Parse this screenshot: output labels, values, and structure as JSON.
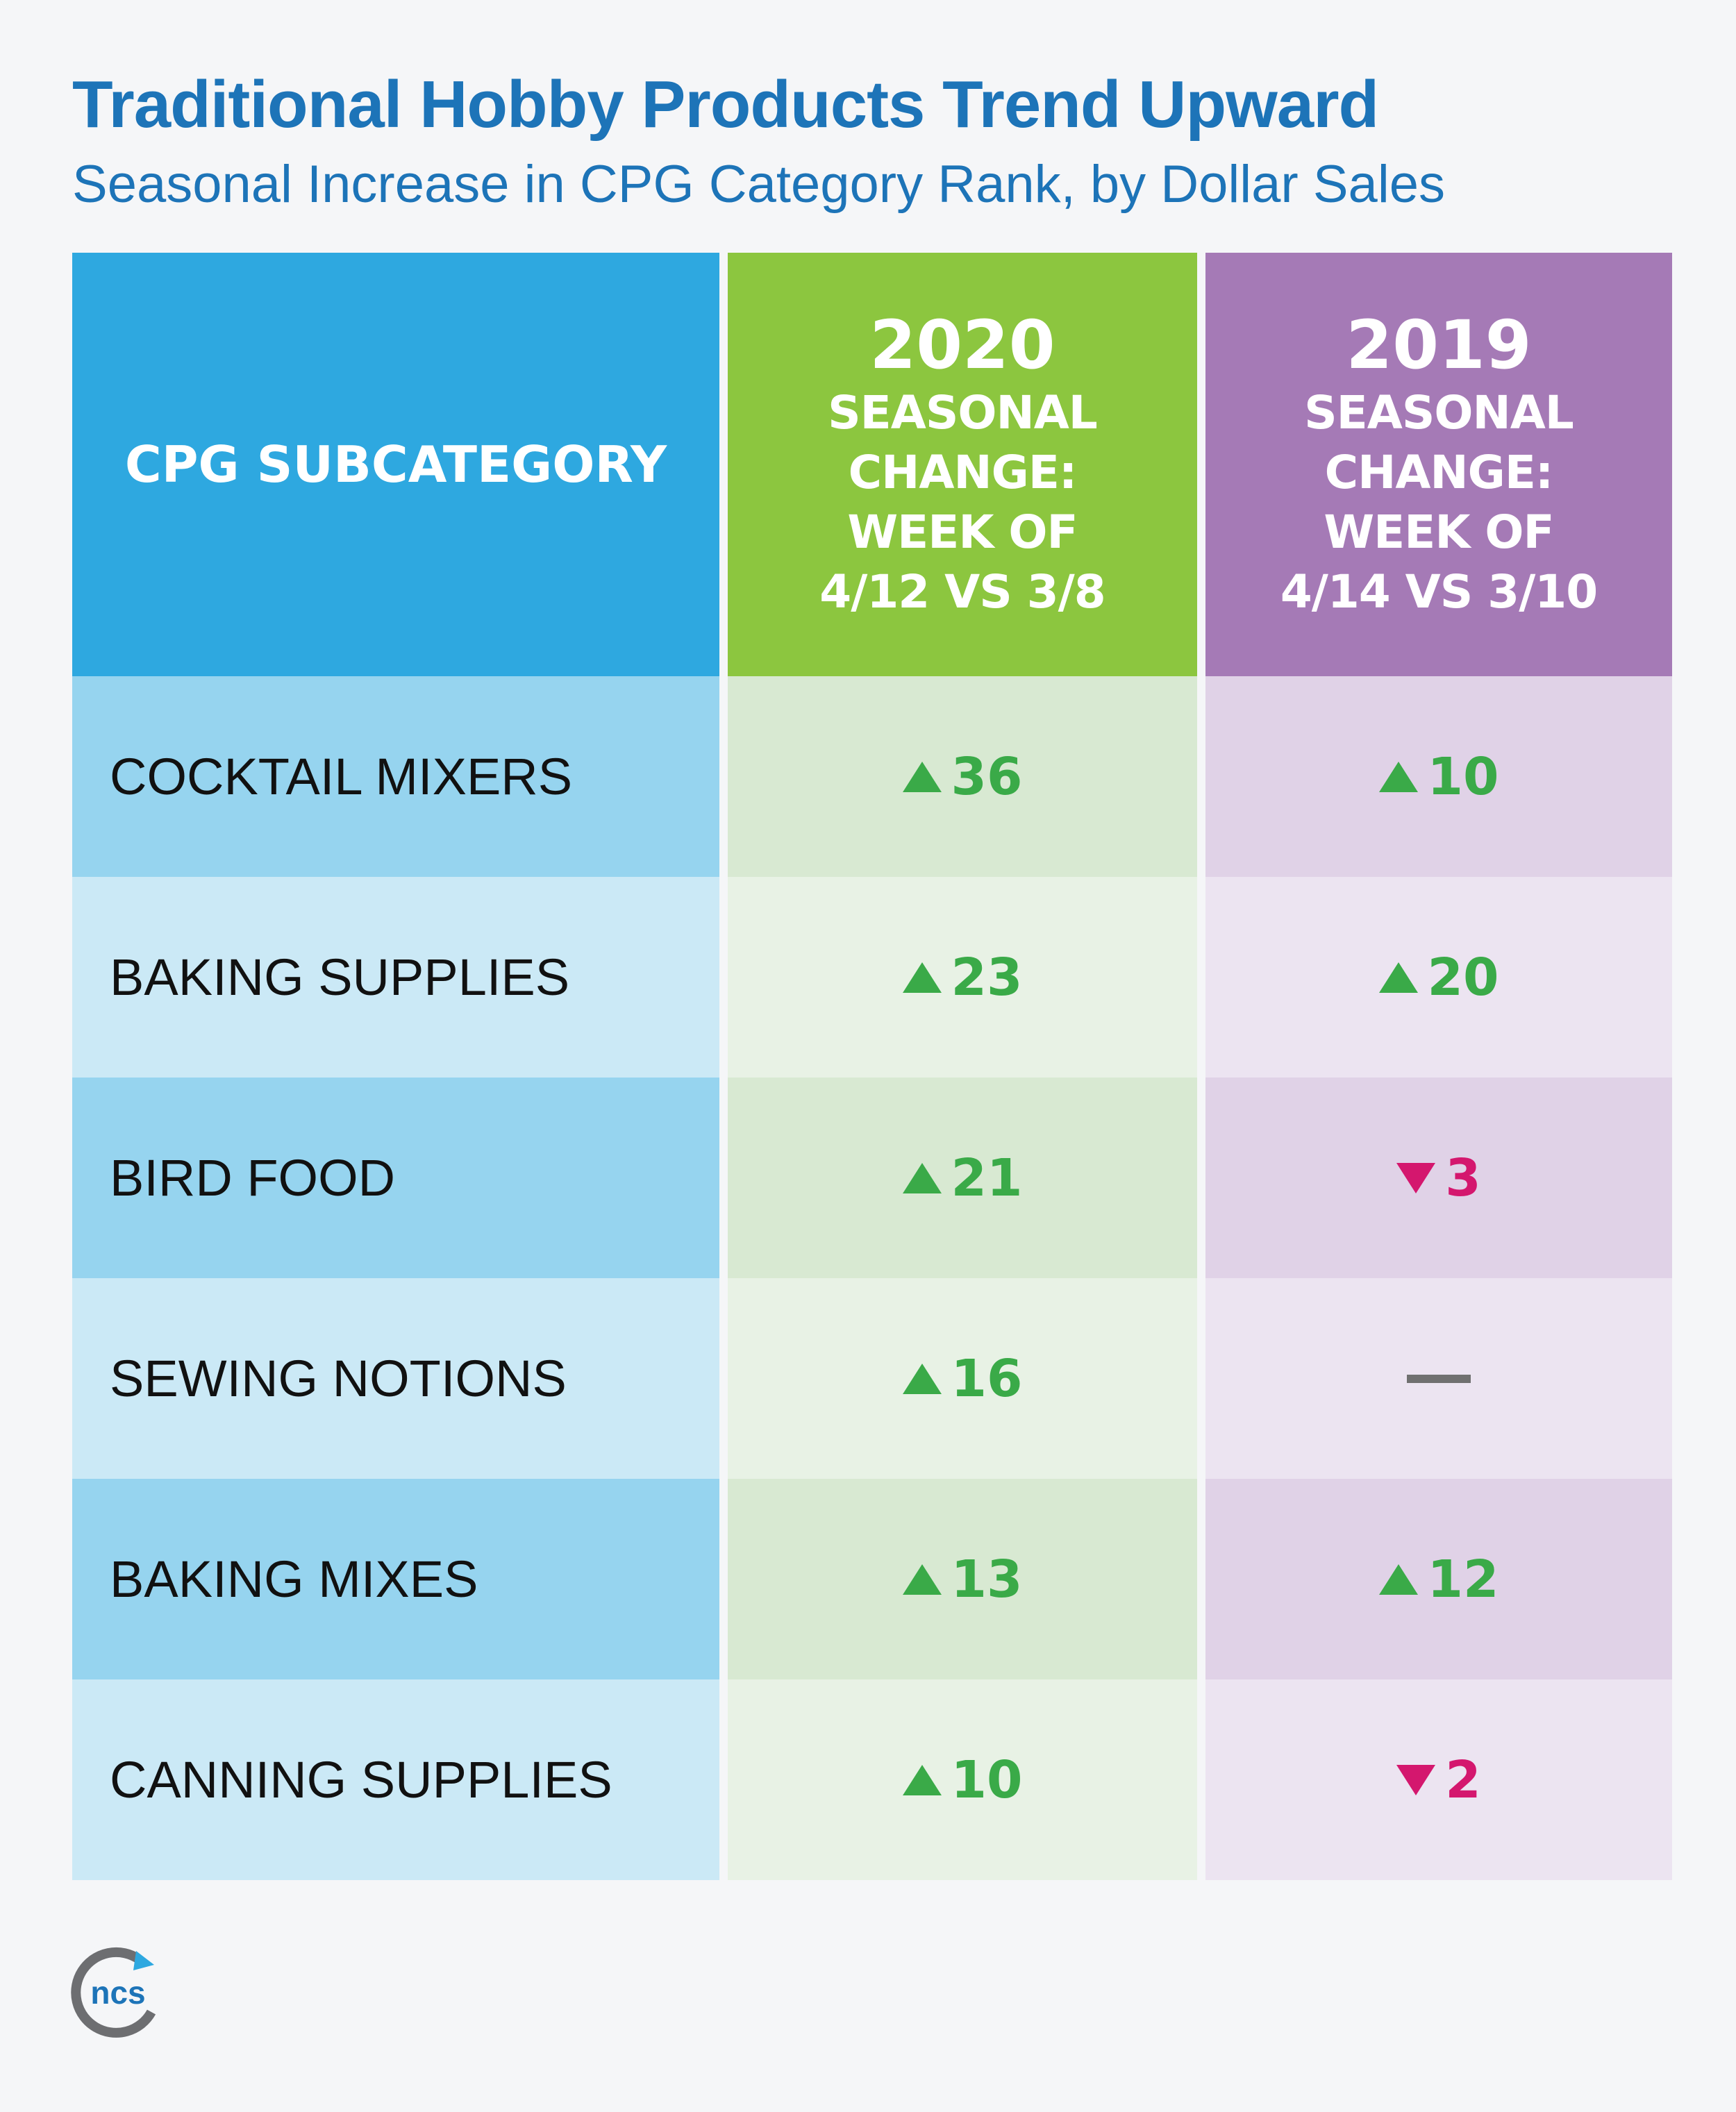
{
  "title": "Traditional Hobby Products Trend Upward",
  "subtitle": "Seasonal Increase in CPG Category Rank, by Dollar Sales",
  "headers": {
    "subcategory": "CPG SUBCATEGORY",
    "col2020_year": "2020",
    "col2020_desc": "SEASONAL\nCHANGE:\nWEEK OF\n4/12 VS 3/8",
    "col2019_year": "2019",
    "col2019_desc": "SEASONAL\nCHANGE:\nWEEK OF\n4/14 VS 3/10"
  },
  "colors": {
    "up": "#3aaa48",
    "down": "#d4176e",
    "header_blue": "#2ea8e0",
    "header_green": "#8cc63f",
    "header_purple": "#a57ab6",
    "title_blue": "#1d74b8"
  },
  "logo_text": "ncs",
  "chart_data": {
    "type": "table",
    "columns": [
      "CPG SUBCATEGORY",
      "2020 SEASONAL CHANGE: WEEK OF 4/12 VS 3/8",
      "2019 SEASONAL CHANGE: WEEK OF 4/14 VS 3/10"
    ],
    "rows": [
      {
        "subcategory": "COCKTAIL MIXERS",
        "v2020": {
          "dir": "up",
          "value": "36"
        },
        "v2019": {
          "dir": "up",
          "value": "10"
        }
      },
      {
        "subcategory": "BAKING SUPPLIES",
        "v2020": {
          "dir": "up",
          "value": "23"
        },
        "v2019": {
          "dir": "up",
          "value": "20"
        }
      },
      {
        "subcategory": "BIRD FOOD",
        "v2020": {
          "dir": "up",
          "value": "21"
        },
        "v2019": {
          "dir": "down",
          "value": "3"
        }
      },
      {
        "subcategory": "SEWING NOTIONS",
        "v2020": {
          "dir": "up",
          "value": "16"
        },
        "v2019": {
          "dir": "none",
          "value": ""
        }
      },
      {
        "subcategory": "BAKING MIXES",
        "v2020": {
          "dir": "up",
          "value": "13"
        },
        "v2019": {
          "dir": "up",
          "value": "12"
        }
      },
      {
        "subcategory": "CANNING SUPPLIES",
        "v2020": {
          "dir": "up",
          "value": "10"
        },
        "v2019": {
          "dir": "down",
          "value": "2"
        }
      }
    ]
  }
}
